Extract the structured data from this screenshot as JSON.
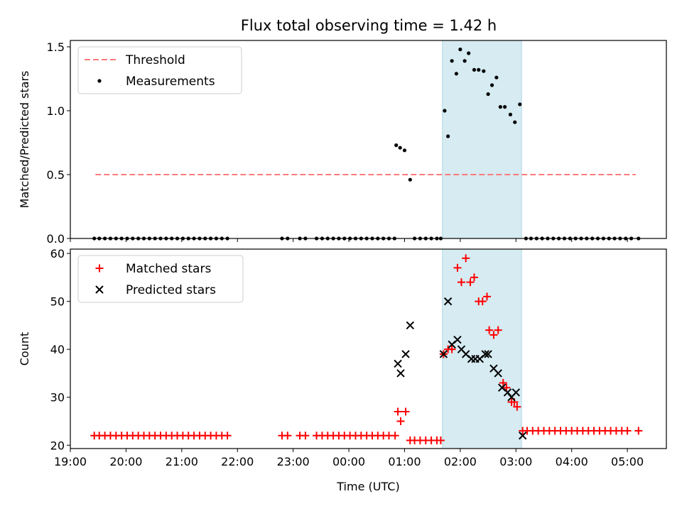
{
  "title": "Flux total observing time = 1.42 h",
  "colors": {
    "threshold": "#ff7b7b",
    "measurement": "#000000",
    "matched": "#ff0000",
    "predicted": "#000000",
    "highlight": "#add8e6"
  },
  "chart_data": [
    {
      "type": "scatter",
      "ylabel": "Matched/Predicted stars",
      "xlim": [
        19.0,
        29.7
      ],
      "ylim": [
        0,
        1.55
      ],
      "yticks": [
        0.0,
        0.5,
        1.0,
        1.5
      ],
      "ytick_labels": [
        "0.0",
        "0.5",
        "1.0",
        "1.5"
      ],
      "highlight_x": [
        25.68,
        27.1
      ],
      "legend": [
        "Threshold",
        "Measurements"
      ],
      "legend_position": "upper left",
      "threshold": {
        "name": "Threshold",
        "value": 0.5,
        "x": [
          19.45,
          29.15
        ]
      },
      "measurements": {
        "name": "Measurements",
        "x": [
          19.43,
          19.52,
          19.62,
          19.72,
          19.82,
          19.92,
          20.02,
          20.12,
          20.22,
          20.32,
          20.42,
          20.52,
          20.62,
          20.72,
          20.82,
          20.92,
          21.02,
          21.12,
          21.22,
          21.32,
          21.42,
          21.52,
          21.62,
          21.72,
          21.82,
          22.8,
          22.9,
          23.12,
          23.22,
          23.42,
          23.52,
          23.62,
          23.72,
          23.82,
          23.92,
          24.02,
          24.12,
          24.22,
          24.32,
          24.42,
          24.52,
          24.62,
          24.72,
          24.82,
          24.85,
          24.92,
          25.0,
          25.1,
          25.18,
          25.28,
          25.38,
          25.48,
          25.58,
          25.65,
          25.72,
          25.78,
          25.85,
          25.93,
          26.0,
          26.08,
          26.15,
          26.25,
          26.33,
          26.42,
          26.5,
          26.57,
          26.65,
          26.72,
          26.8,
          26.9,
          26.98,
          27.07,
          27.18,
          27.27,
          27.37,
          27.47,
          27.57,
          27.67,
          27.77,
          27.87,
          27.97,
          28.07,
          28.17,
          28.27,
          28.37,
          28.47,
          28.57,
          28.67,
          28.77,
          28.87,
          28.97,
          29.07,
          29.2
        ],
        "y": [
          0,
          0,
          0,
          0,
          0,
          0,
          0,
          0,
          0,
          0,
          0,
          0,
          0,
          0,
          0,
          0,
          0,
          0,
          0,
          0,
          0,
          0,
          0,
          0,
          0,
          0,
          0,
          0,
          0,
          0,
          0,
          0,
          0,
          0,
          0,
          0,
          0,
          0,
          0,
          0,
          0,
          0,
          0,
          0,
          0.73,
          0.71,
          0.69,
          0.46,
          0,
          0,
          0,
          0,
          0,
          0,
          1.0,
          0.8,
          1.39,
          1.29,
          1.48,
          1.39,
          1.45,
          1.32,
          1.32,
          1.31,
          1.13,
          1.2,
          1.26,
          1.03,
          1.03,
          0.97,
          0.91,
          1.05,
          0,
          0,
          0,
          0,
          0,
          0,
          0,
          0,
          0,
          0,
          0,
          0,
          0,
          0,
          0,
          0,
          0,
          0,
          0,
          0,
          0
        ]
      }
    },
    {
      "type": "scatter",
      "xlabel": "Time (UTC)",
      "ylabel": "Count",
      "xlim": [
        19.0,
        29.7
      ],
      "ylim": [
        19.3,
        60.9
      ],
      "xticks": [
        19,
        20,
        21,
        22,
        23,
        24,
        25,
        26,
        27,
        28,
        29
      ],
      "xtick_labels": [
        "19:00",
        "20:00",
        "21:00",
        "22:00",
        "23:00",
        "00:00",
        "01:00",
        "02:00",
        "03:00",
        "04:00",
        "05:00"
      ],
      "yticks": [
        20,
        30,
        40,
        50,
        60
      ],
      "ytick_labels": [
        "20",
        "30",
        "40",
        "50",
        "60"
      ],
      "highlight_x": [
        25.68,
        27.1
      ],
      "legend": [
        "Matched stars",
        "Predicted stars"
      ],
      "legend_position": "upper left",
      "series": [
        {
          "name": "Matched stars",
          "marker": "+",
          "x": [
            19.43,
            19.52,
            19.62,
            19.72,
            19.82,
            19.92,
            20.02,
            20.12,
            20.22,
            20.32,
            20.42,
            20.52,
            20.62,
            20.72,
            20.82,
            20.92,
            21.02,
            21.12,
            21.22,
            21.32,
            21.42,
            21.52,
            21.62,
            21.72,
            21.82,
            22.8,
            22.9,
            23.12,
            23.22,
            23.42,
            23.52,
            23.62,
            23.72,
            23.82,
            23.92,
            24.02,
            24.12,
            24.22,
            24.32,
            24.42,
            24.52,
            24.62,
            24.72,
            24.83,
            24.88,
            24.93,
            25.02,
            25.1,
            25.18,
            25.28,
            25.38,
            25.48,
            25.58,
            25.65,
            25.7,
            25.78,
            25.85,
            25.95,
            26.02,
            26.1,
            26.18,
            26.25,
            26.33,
            26.4,
            26.48,
            26.52,
            26.6,
            26.68,
            26.77,
            26.83,
            26.92,
            26.97,
            27.02,
            27.12,
            27.2,
            27.3,
            27.4,
            27.5,
            27.6,
            27.7,
            27.8,
            27.9,
            28.0,
            28.1,
            28.2,
            28.3,
            28.4,
            28.5,
            28.6,
            28.7,
            28.8,
            28.9,
            29.0,
            29.2
          ],
          "y": [
            22,
            22,
            22,
            22,
            22,
            22,
            22,
            22,
            22,
            22,
            22,
            22,
            22,
            22,
            22,
            22,
            22,
            22,
            22,
            22,
            22,
            22,
            22,
            22,
            22,
            22,
            22,
            22,
            22,
            22,
            22,
            22,
            22,
            22,
            22,
            22,
            22,
            22,
            22,
            22,
            22,
            22,
            22,
            22,
            27,
            25,
            27,
            21,
            21,
            21,
            21,
            21,
            21,
            21,
            39,
            40,
            40,
            57,
            54,
            59,
            54,
            55,
            50,
            50,
            51,
            44,
            43,
            44,
            33,
            32,
            29,
            29,
            28,
            23,
            23,
            23,
            23,
            23,
            23,
            23,
            23,
            23,
            23,
            23,
            23,
            23,
            23,
            23,
            23,
            23,
            23,
            23,
            23,
            23
          ]
        },
        {
          "name": "Predicted stars",
          "marker": "x",
          "x": [
            24.88,
            24.93,
            25.02,
            25.1,
            25.7,
            25.78,
            25.85,
            25.95,
            26.02,
            26.1,
            26.2,
            26.27,
            26.35,
            26.45,
            26.5,
            26.6,
            26.68,
            26.75,
            26.85,
            26.92,
            27.0,
            27.12
          ],
          "y": [
            37,
            35,
            39,
            45,
            39,
            50,
            41,
            42,
            40,
            39,
            38,
            38,
            38,
            39,
            39,
            36,
            35,
            32,
            31,
            30,
            31,
            22
          ]
        }
      ]
    }
  ]
}
